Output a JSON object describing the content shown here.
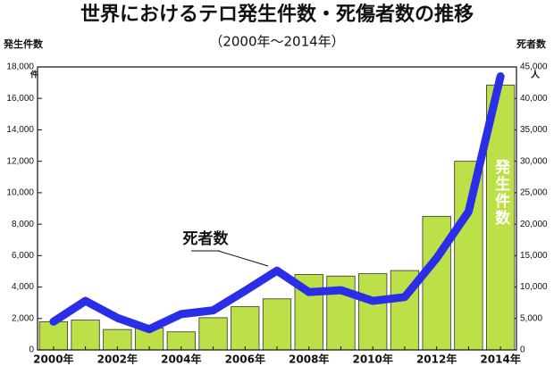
{
  "chart_data": {
    "type": "bar_line",
    "title": "世界におけるテロ発生件数・死傷者数の推移",
    "subtitle": "（2000年〜2014年）",
    "y_label": "発生件数",
    "y_unit": "件",
    "y2_label": "死者数",
    "y2_unit": "人",
    "categories": [
      "2000年",
      null,
      "2002年",
      null,
      "2004年",
      null,
      "2006年",
      null,
      "2008年",
      null,
      "2010年",
      null,
      "2012年",
      null,
      "2014年"
    ],
    "series": [
      {
        "name": "発生件数",
        "type": "bar",
        "color": "#bde048",
        "values": [
          1800,
          1900,
          1300,
          1400,
          1150,
          2050,
          2750,
          3250,
          4800,
          4700,
          4850,
          5050,
          8500,
          12000,
          16850
        ]
      },
      {
        "name": "死者数",
        "type": "line",
        "axis": "y2",
        "color": "#2a2ee6",
        "values": [
          4500,
          7800,
          5100,
          3300,
          5700,
          6300,
          9400,
          12600,
          9200,
          9500,
          7800,
          8400,
          14600,
          22000,
          43500
        ]
      }
    ],
    "ylim": [
      0,
      18000
    ],
    "yticks": [
      0,
      {
        "value": 2000,
        "label": "2,000"
      },
      {
        "value": 4000,
        "label": "4,000"
      },
      {
        "value": 6000,
        "label": "6,000"
      },
      {
        "value": 8000,
        "label": "8,000"
      },
      {
        "value": 10000,
        "label": "10,000"
      },
      {
        "value": 12000,
        "label": "12,000"
      },
      {
        "value": 14000,
        "label": "14,000"
      },
      {
        "value": 16000,
        "label": "16,000"
      },
      {
        "value": 18000,
        "label": "18,000"
      }
    ],
    "y2lim": [
      0,
      45000
    ],
    "y2ticks": [
      0,
      {
        "value": 5000,
        "label": "5,000"
      },
      {
        "value": 10000,
        "label": "10,000"
      },
      {
        "value": 15000,
        "label": "15,000"
      },
      {
        "value": 20000,
        "label": "20,000"
      },
      {
        "value": 25000,
        "label": "25,000"
      },
      {
        "value": 30000,
        "label": "30,000"
      },
      {
        "value": 35000,
        "label": "35,000"
      },
      {
        "value": 40000,
        "label": "40,000"
      },
      {
        "value": 45000,
        "label": "45,000"
      }
    ],
    "grid": false
  }
}
